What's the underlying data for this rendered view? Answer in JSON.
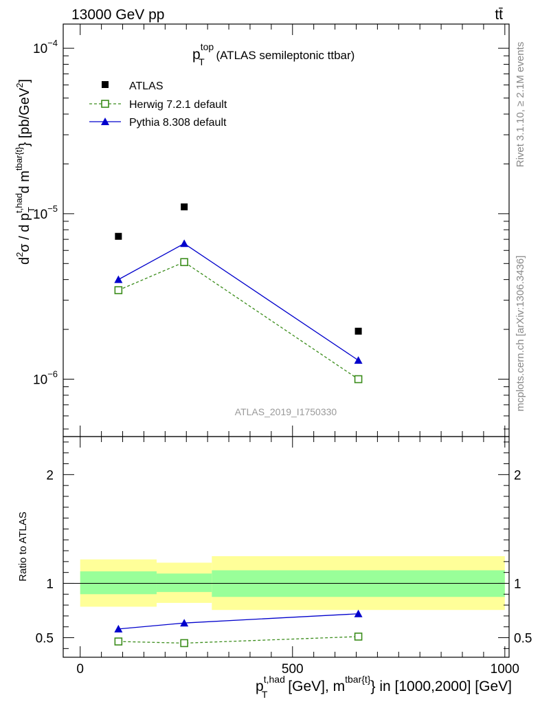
{
  "header": {
    "energy_label": "13000 GeV pp",
    "process_label": "tt̄"
  },
  "side_labels": {
    "rivet": "Rivet 3.1.10, ≥ 2.1M events",
    "mcplots": "mcplots.cern.ch [arXiv:1306.3436]"
  },
  "watermark": "ATLAS_2019_I1750330",
  "colors": {
    "atlas": "#000000",
    "herwig": "#3a8c1a",
    "pythia": "#0000cc",
    "band_outer": "#ffff99",
    "band_inner": "#99ff99"
  },
  "chart_data": [
    {
      "type": "scatter",
      "panel": "main",
      "title": {
        "main": "p",
        "sup": "top",
        "sub": "T",
        "rest": " (ATLAS semileptonic ttbar)"
      },
      "ylabel": "d²σ / d p_T^{t,had} d m^{tbar{t}} [pb/GeV²]",
      "yscale": "log",
      "ylim": [
        4.5e-07,
        0.00014
      ],
      "xlim": [
        -40,
        1010
      ],
      "ytick_labels": [
        {
          "value": 1e-06,
          "base": "10",
          "exp": "−6"
        },
        {
          "value": 1e-05,
          "base": "10",
          "exp": "−5"
        },
        {
          "value": 0.0001,
          "base": "10",
          "exp": "−4"
        }
      ],
      "legend": {
        "placement": "top-left",
        "entries": [
          {
            "label": "ATLAS",
            "marker": "square-filled"
          },
          {
            "label": "Herwig 7.2.1 default",
            "marker": "square-open",
            "line": "dashed"
          },
          {
            "label": "Pythia 8.308 default",
            "marker": "triangle-filled",
            "line": "solid"
          }
        ]
      },
      "series": [
        {
          "name": "ATLAS",
          "x": [
            90,
            245,
            655
          ],
          "y": [
            7.3e-06,
            1.1e-05,
            1.95e-06
          ]
        },
        {
          "name": "Herwig 7.2.1 default",
          "x": [
            90,
            245,
            655
          ],
          "y": [
            3.45e-06,
            5.1e-06,
            1e-06
          ]
        },
        {
          "name": "Pythia 8.308 default",
          "x": [
            90,
            245,
            655
          ],
          "y": [
            4e-06,
            6.6e-06,
            1.3e-06
          ]
        }
      ]
    },
    {
      "type": "line",
      "panel": "ratio",
      "ylabel": "Ratio to ATLAS",
      "xlabel": {
        "p": "p",
        "sup1": "t,had",
        "sub": "T",
        "mid": " [GeV], m",
        "sup2": "tbar{t}",
        "end": "} in [1000,2000] [GeV]"
      },
      "ylim": [
        0.32,
        2.35
      ],
      "xlim": [
        -40,
        1010
      ],
      "xticks": [
        0,
        500,
        1000
      ],
      "xtick_labels": [
        "0",
        "500",
        "1000"
      ],
      "yticks": [
        0.5,
        1,
        2
      ],
      "ytick_labels": [
        "0.5",
        "1",
        "2"
      ],
      "reference_line": 1,
      "bands": [
        {
          "x0": 0,
          "x1": 180,
          "outer": [
            0.785,
            1.22
          ],
          "inner": [
            0.9,
            1.11
          ]
        },
        {
          "x0": 180,
          "x1": 310,
          "outer": [
            0.82,
            1.19
          ],
          "inner": [
            0.92,
            1.09
          ]
        },
        {
          "x0": 310,
          "x1": 1000,
          "outer": [
            0.755,
            1.25
          ],
          "inner": [
            0.875,
            1.12
          ]
        }
      ],
      "series": [
        {
          "name": "Herwig 7.2.1 default",
          "x": [
            90,
            245,
            655
          ],
          "y": [
            0.465,
            0.45,
            0.51
          ]
        },
        {
          "name": "Pythia 8.308 default",
          "x": [
            90,
            245,
            655
          ],
          "y": [
            0.58,
            0.635,
            0.72
          ]
        }
      ]
    }
  ]
}
